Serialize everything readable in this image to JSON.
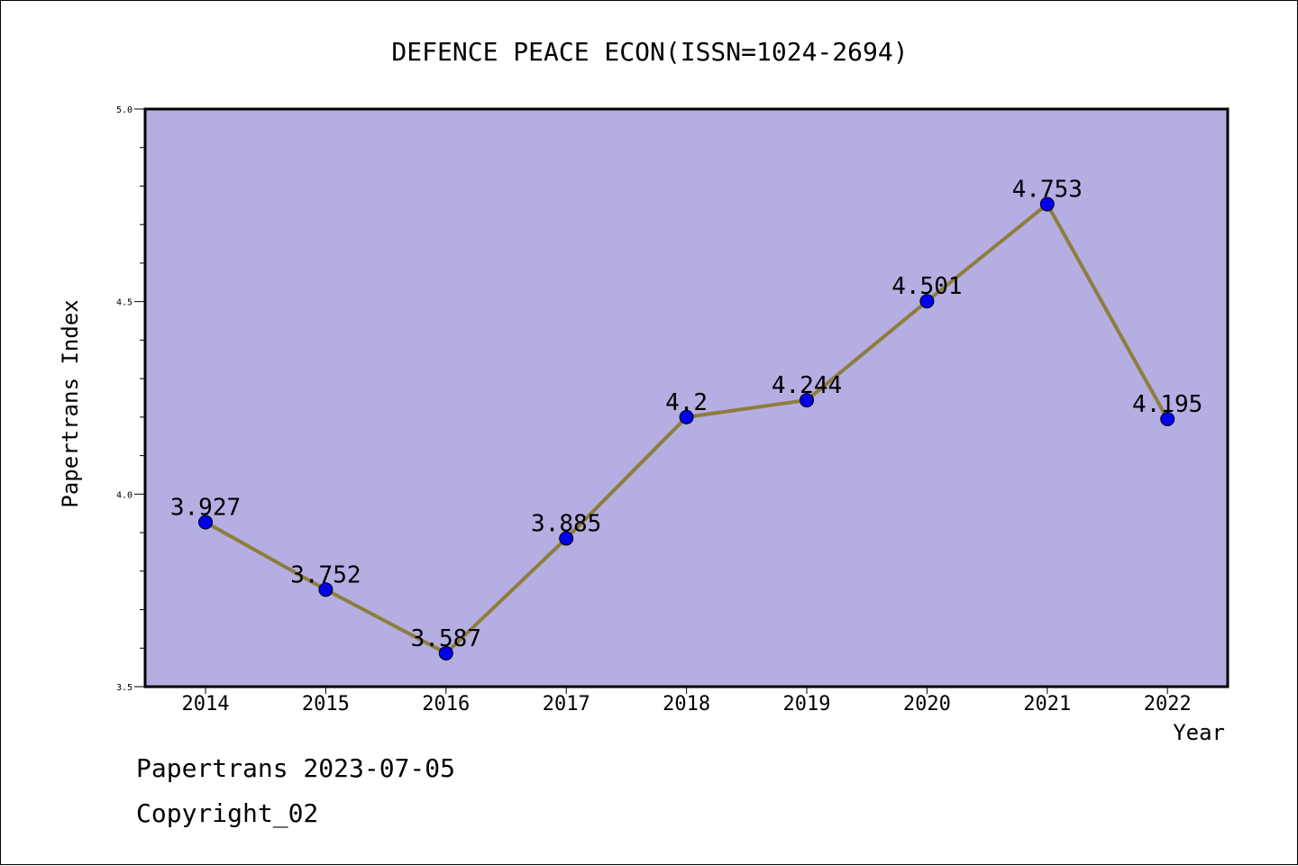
{
  "chart_data": {
    "type": "line",
    "title": "DEFENCE PEACE ECON(ISSN=1024-2694)",
    "xlabel": "Year",
    "ylabel": "Papertrans Index",
    "categories": [
      "2014",
      "2015",
      "2016",
      "2017",
      "2018",
      "2019",
      "2020",
      "2021",
      "2022"
    ],
    "series": [
      {
        "values": [
          3.927,
          3.752,
          3.587,
          3.885,
          4.2,
          4.244,
          4.501,
          4.753,
          4.195
        ],
        "labels": [
          "3.927",
          "3.752",
          "3.587",
          "3.885",
          "4.2",
          "4.244",
          "4.501",
          "4.753",
          "4.195"
        ]
      }
    ],
    "ylim": [
      3.5,
      5.0
    ],
    "yticks": [
      "3.5",
      "4.0",
      "4.5",
      "5.0"
    ],
    "colors": {
      "plot_bg": "#b4aee2",
      "line": "#8e7d3c",
      "marker": "#0000ee"
    },
    "grid": false
  },
  "footer": {
    "date_line": "Papertrans 2023-07-05",
    "copyright": "Copyright_02"
  }
}
